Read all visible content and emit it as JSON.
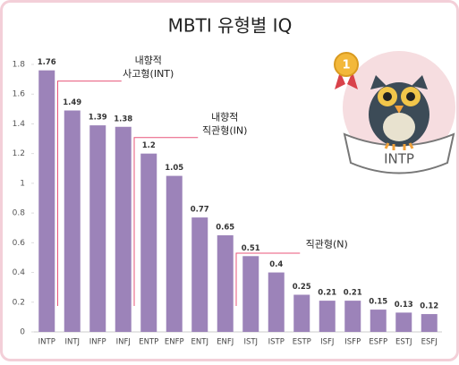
{
  "chart_data": {
    "type": "bar",
    "title": "MBTI 유형별 IQ",
    "categories": [
      "INTP",
      "INTJ",
      "INFP",
      "INFJ",
      "ENTP",
      "ENFP",
      "ENTJ",
      "ENFJ",
      "ISTJ",
      "ISTP",
      "ESTP",
      "ISFJ",
      "ISFP",
      "ESFP",
      "ESTJ",
      "ESFJ"
    ],
    "values": [
      1.76,
      1.49,
      1.39,
      1.38,
      1.2,
      1.05,
      0.77,
      0.65,
      0.51,
      0.4,
      0.25,
      0.21,
      0.21,
      0.15,
      0.13,
      0.12
    ],
    "color": "#9c83b9",
    "ylim": [
      0,
      1.8
    ],
    "yticks": [
      0,
      0.2,
      0.4,
      0.6,
      0.8,
      1,
      1.2,
      1.4,
      1.6,
      1.8
    ],
    "grid": false,
    "annotations": [
      {
        "text": [
          "내향적",
          "사고형(INT)"
        ],
        "from": 1,
        "to": 3
      },
      {
        "text": [
          "내향적",
          "직관형(IN)"
        ],
        "from": 4,
        "to": 6
      },
      {
        "text": [
          "직관형(N)"
        ],
        "from": 8,
        "to": 15
      }
    ],
    "badge": {
      "rank": "1",
      "label": "INTP"
    }
  }
}
